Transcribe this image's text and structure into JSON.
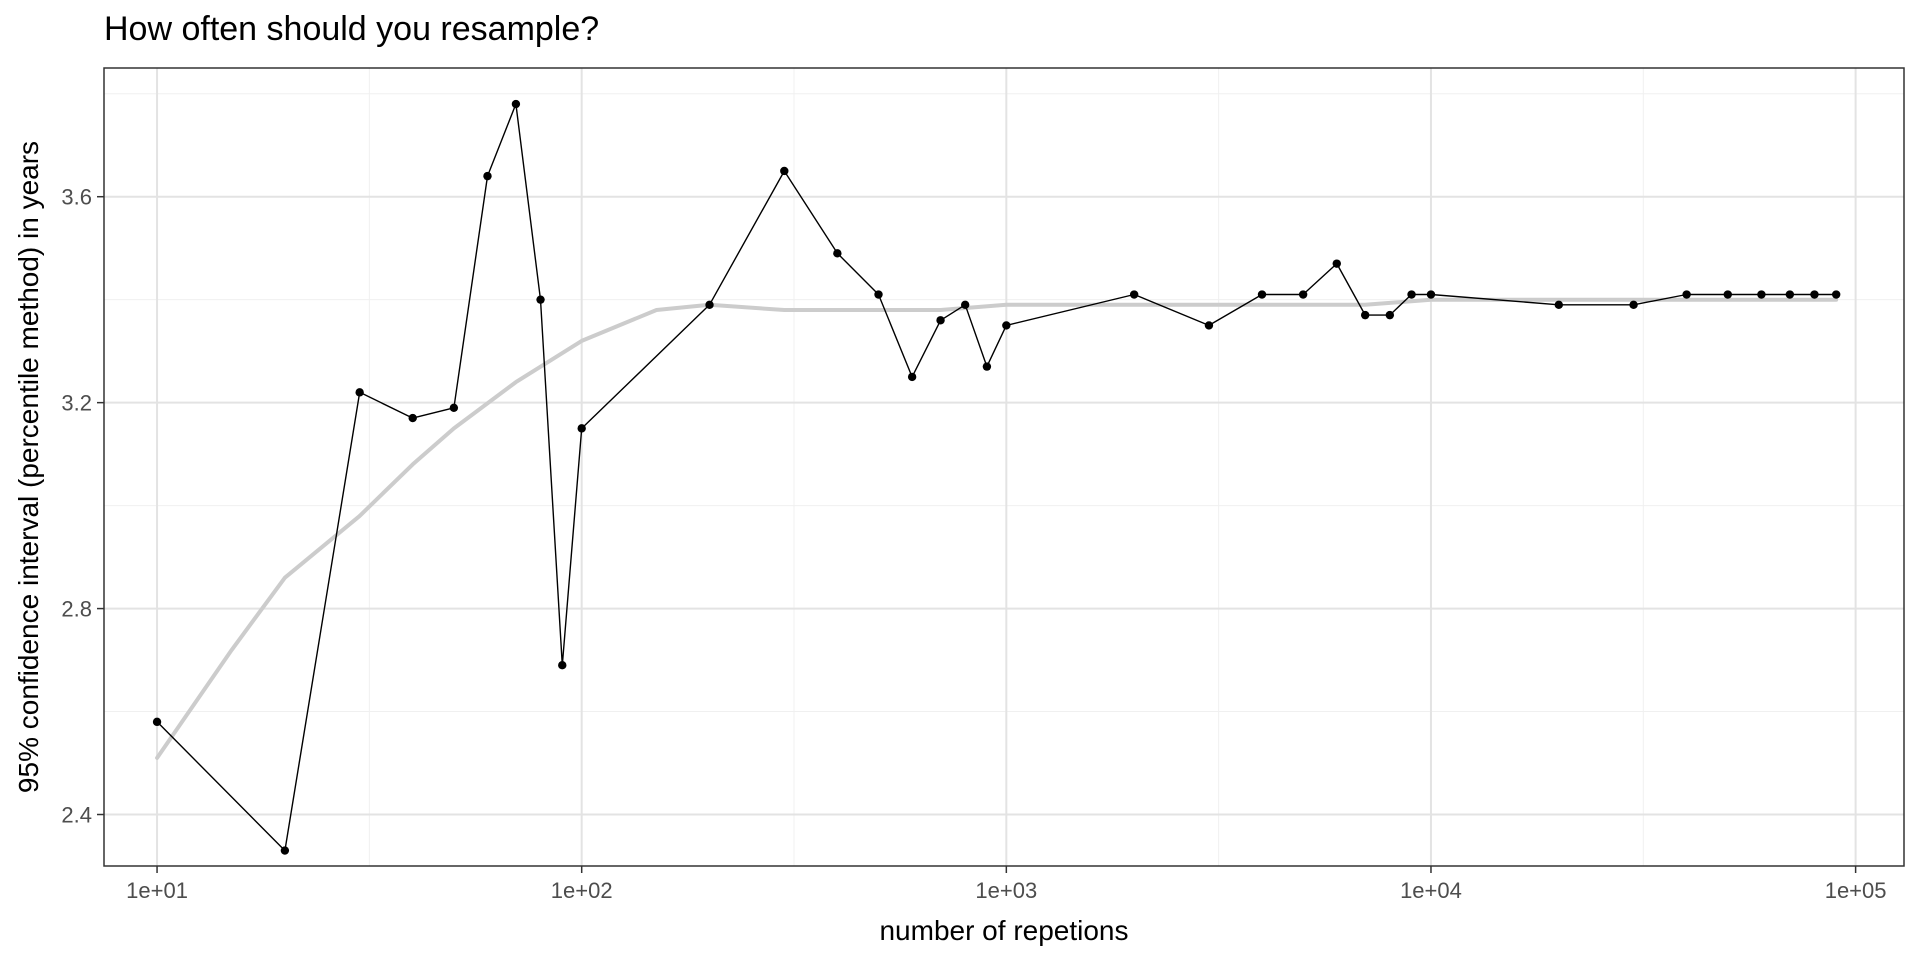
{
  "chart_data": {
    "type": "line",
    "title": "How often should you resample?",
    "xlabel": "number of repetions",
    "ylabel": "95% confidence interval (percentile method) in years",
    "x_scale": "log10",
    "xlim": [
      7.5,
      130000
    ],
    "ylim": [
      2.3,
      3.85
    ],
    "x_ticks": [
      10,
      100,
      1000,
      10000,
      100000
    ],
    "x_tick_labels": [
      "1e+01",
      "1e+02",
      "1e+03",
      "1e+04",
      "1e+05"
    ],
    "y_ticks": [
      2.4,
      2.8,
      3.2,
      3.6
    ],
    "y_tick_labels": [
      "2.4",
      "2.8",
      "3.2",
      "3.6"
    ],
    "grid": true,
    "series": [
      {
        "style": "black line with points",
        "color": "#000000",
        "x": [
          10,
          20,
          30,
          40,
          50,
          60,
          70,
          80,
          90,
          100,
          200,
          300,
          400,
          500,
          600,
          700,
          800,
          900,
          1000,
          2000,
          3000,
          4000,
          5000,
          6000,
          7000,
          8000,
          9000,
          10000,
          20000,
          30000,
          40000,
          50000,
          60000,
          70000,
          80000,
          90000
        ],
        "y": [
          2.58,
          2.33,
          3.22,
          3.17,
          3.19,
          3.64,
          3.78,
          3.4,
          2.69,
          3.15,
          3.39,
          3.65,
          3.49,
          3.41,
          3.25,
          3.36,
          3.39,
          3.27,
          3.35,
          3.41,
          3.35,
          3.41,
          3.41,
          3.47,
          3.37,
          3.37,
          3.41,
          3.41,
          3.39,
          3.39,
          3.41,
          3.41,
          3.41,
          3.41,
          3.41,
          3.41
        ]
      },
      {
        "style": "smooth trend line",
        "color": "#cccccc",
        "x": [
          10,
          15,
          20,
          30,
          40,
          50,
          70,
          100,
          150,
          200,
          300,
          500,
          700,
          1000,
          2000,
          3000,
          5000,
          7000,
          10000,
          20000,
          50000,
          90000
        ],
        "y": [
          2.51,
          2.72,
          2.86,
          2.98,
          3.08,
          3.15,
          3.24,
          3.32,
          3.38,
          3.39,
          3.38,
          3.38,
          3.38,
          3.39,
          3.39,
          3.39,
          3.39,
          3.39,
          3.4,
          3.4,
          3.4,
          3.4
        ]
      }
    ]
  }
}
